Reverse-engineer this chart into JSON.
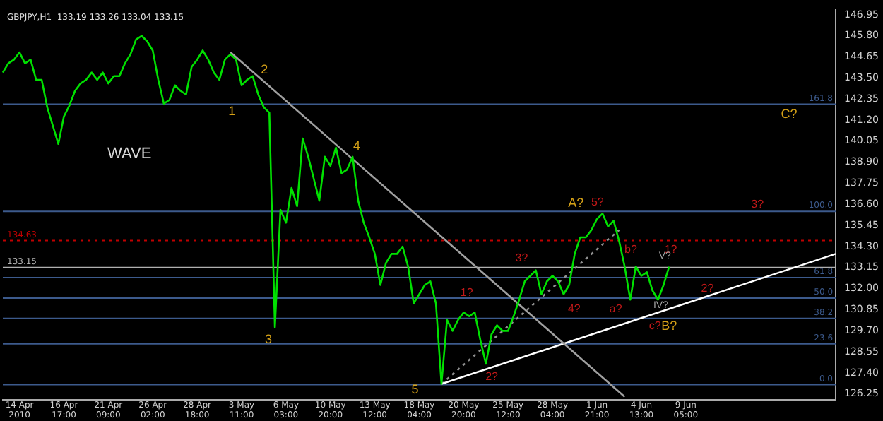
{
  "chart_data": {
    "type": "line",
    "title": "GBPJPY,H1  133.19 133.26 133.04 133.15",
    "categories": [
      null,
      null,
      null,
      "14 Apr 2010",
      null,
      null,
      null,
      null,
      null,
      null,
      null,
      "16 Apr 17:00",
      null,
      null,
      null,
      null,
      null,
      null,
      null,
      "21 Apr 09:00",
      null,
      null,
      null,
      null,
      null,
      null,
      null,
      "26 Apr 02:00",
      null,
      null,
      null,
      null,
      null,
      null,
      null,
      "28 Apr 18:00",
      null,
      null,
      null,
      null,
      null,
      null,
      null,
      "3 May 11:00",
      null,
      null,
      null,
      null,
      null,
      null,
      null,
      "6 May 03:00",
      null,
      null,
      null,
      null,
      null,
      null,
      null,
      "10 May 20:00",
      null,
      null,
      null,
      null,
      null,
      null,
      null,
      "13 May 12:00",
      null,
      null,
      null,
      null,
      null,
      null,
      null,
      "18 May 04:00",
      null,
      null,
      null,
      null,
      null,
      null,
      null,
      "20 May 20:00",
      null,
      null,
      null,
      null,
      null,
      null,
      null,
      "25 May 12:00",
      null,
      null,
      null,
      null,
      null,
      null,
      null,
      "28 May 04:00",
      null,
      null,
      null,
      null,
      null,
      null,
      null,
      "1 Jun 21:00",
      null,
      null,
      null,
      null,
      null,
      null,
      null,
      "4 Jun 13:00",
      null,
      null,
      null,
      null,
      null,
      null,
      null,
      "9 Jun 05:00",
      null,
      null,
      null,
      null,
      null,
      null,
      null,
      null,
      null,
      null,
      null,
      null,
      null,
      null,
      null,
      null,
      null,
      null,
      null,
      null,
      null,
      null,
      null,
      null,
      null,
      null,
      null
    ],
    "ylim": [
      125.95,
      147.2
    ],
    "yticks": [
      126.25,
      {
        "value": 127.4,
        "label": "127.40"
      },
      128.55,
      {
        "value": 129.7,
        "label": "129.70"
      },
      130.85,
      {
        "value": 132,
        "label": "132.00"
      },
      133.15,
      {
        "value": 134.3,
        "label": "134.30"
      },
      135.45,
      {
        "value": 136.6,
        "label": "136.60"
      },
      137.75,
      {
        "value": 138.9,
        "label": "138.90"
      },
      140.05,
      {
        "value": 141.2,
        "label": "141.20"
      },
      142.35,
      {
        "value": 143.5,
        "label": "143.50"
      },
      144.65,
      {
        "value": 145.8,
        "label": "145.80"
      },
      146.95
    ],
    "y2lim": [
      -8.56,
      216.07
    ],
    "marker": "none",
    "series": [
      {
        "color": "#00e000",
        "values": [
          143.8,
          144.3,
          144.5,
          144.9,
          144.3,
          144.5,
          143.4,
          143.4,
          141.9,
          140.9,
          139.9,
          141.4,
          142.0,
          142.8,
          143.2,
          143.4,
          143.8,
          143.4,
          143.8,
          143.2,
          143.6,
          143.6,
          144.3,
          144.8,
          145.6,
          145.8,
          145.5,
          145.0,
          143.4,
          142.1,
          142.3,
          143.1,
          142.8,
          142.6,
          144.1,
          144.5,
          145.0,
          144.5,
          143.8,
          143.4,
          144.5,
          144.8,
          144.5,
          143.1,
          143.4,
          143.6,
          142.6,
          141.9,
          141.6,
          129.9,
          136.3,
          135.6,
          137.5,
          136.5,
          140.2,
          139.2,
          138.0,
          136.8,
          139.2,
          138.7,
          139.7,
          138.3,
          138.5,
          139.2,
          136.8,
          135.6,
          134.8,
          133.9,
          132.2,
          133.4,
          133.9,
          133.9,
          134.3,
          133.2,
          131.2,
          131.7,
          132.2,
          132.4,
          131.2,
          126.8,
          130.3,
          129.7,
          130.3,
          130.7,
          130.5,
          130.7,
          129.2,
          127.9,
          129.5,
          130.0,
          129.7,
          129.7,
          130.5,
          131.4,
          132.4,
          132.7,
          133.0,
          131.7,
          132.4,
          132.7,
          132.4,
          131.7,
          132.2,
          133.9,
          134.8,
          134.8,
          135.2,
          135.8,
          136.1,
          135.4,
          135.7,
          134.6,
          133.2,
          131.4,
          133.2,
          132.7,
          132.9,
          131.9,
          131.4,
          132.2,
          133.2,
          null,
          null,
          null,
          null,
          null,
          null,
          null,
          null,
          null,
          null,
          null,
          null,
          null,
          null,
          null,
          null,
          null,
          null,
          null,
          null,
          null,
          null,
          null,
          null,
          null,
          null,
          null,
          null,
          null,
          null
        ]
      },
      {
        "type": "line",
        "color": "#a0a0a0",
        "values": [
          null,
          null,
          null,
          null,
          null,
          null,
          null,
          null,
          null,
          null,
          null,
          null,
          null,
          null,
          null,
          null,
          null,
          null,
          null,
          null,
          null,
          null,
          null,
          null,
          null,
          null,
          null,
          null,
          null,
          null,
          null,
          null,
          null,
          null,
          null,
          null,
          null,
          null,
          null,
          null,
          null,
          144.9,
          null,
          null,
          null,
          null,
          null,
          null,
          null,
          null,
          null,
          null,
          null,
          null,
          null,
          null,
          null,
          null,
          null,
          null,
          null,
          null,
          null,
          null,
          null,
          null,
          null,
          null,
          null,
          null,
          null,
          null,
          null,
          null,
          null,
          null,
          null,
          null,
          null,
          null,
          null,
          null,
          null,
          null,
          null,
          null,
          null,
          null,
          null,
          null,
          null,
          null,
          null,
          null,
          null,
          null,
          null,
          null,
          null,
          null,
          null,
          null,
          null,
          null,
          null,
          null,
          null,
          null,
          null,
          null,
          null,
          null,
          126.1,
          null,
          null,
          null,
          null,
          null,
          null,
          null,
          null,
          null,
          null,
          null,
          null,
          null,
          null,
          null,
          null,
          null,
          null,
          null,
          null,
          null,
          null,
          null,
          null,
          null,
          null,
          null,
          null,
          null,
          null,
          null,
          null,
          null,
          null,
          null,
          null,
          null,
          null
        ]
      },
      {
        "type": "line",
        "color": "#ffffff",
        "values": [
          null,
          null,
          null,
          null,
          null,
          null,
          null,
          null,
          null,
          null,
          null,
          null,
          null,
          null,
          null,
          null,
          null,
          null,
          null,
          null,
          null,
          null,
          null,
          null,
          null,
          null,
          null,
          null,
          null,
          null,
          null,
          null,
          null,
          null,
          null,
          null,
          null,
          null,
          null,
          null,
          null,
          null,
          null,
          null,
          null,
          null,
          null,
          null,
          null,
          null,
          null,
          null,
          null,
          null,
          null,
          null,
          null,
          null,
          null,
          null,
          null,
          null,
          null,
          null,
          null,
          null,
          null,
          null,
          null,
          null,
          null,
          null,
          null,
          null,
          null,
          null,
          null,
          null,
          null,
          126.8,
          null,
          null,
          null,
          null,
          null,
          null,
          null,
          null,
          null,
          null,
          null,
          null,
          null,
          null,
          null,
          null,
          null,
          null,
          null,
          null,
          null,
          null,
          null,
          null,
          null,
          null,
          null,
          null,
          null,
          null,
          null,
          null,
          null,
          null,
          null,
          null,
          null,
          null,
          null,
          null,
          null,
          null,
          null,
          null,
          null,
          null,
          null,
          null,
          null,
          null,
          null,
          null,
          null,
          null,
          null,
          null,
          null,
          null,
          null,
          null,
          null,
          null,
          null,
          null,
          null,
          null,
          null,
          null,
          null,
          null,
          133.9
        ]
      },
      {
        "type": "line",
        "color": "#909090",
        "line_style": "dotted",
        "values": [
          null,
          null,
          null,
          null,
          null,
          null,
          null,
          null,
          null,
          null,
          null,
          null,
          null,
          null,
          null,
          null,
          null,
          null,
          null,
          null,
          null,
          null,
          null,
          null,
          null,
          null,
          null,
          null,
          null,
          null,
          null,
          null,
          null,
          null,
          null,
          null,
          null,
          null,
          null,
          null,
          null,
          null,
          null,
          null,
          null,
          null,
          null,
          null,
          null,
          null,
          null,
          null,
          null,
          null,
          null,
          null,
          null,
          null,
          null,
          null,
          null,
          null,
          null,
          null,
          null,
          null,
          null,
          null,
          null,
          null,
          null,
          null,
          null,
          null,
          null,
          null,
          null,
          null,
          null,
          126.8,
          null,
          null,
          null,
          null,
          null,
          null,
          null,
          null,
          null,
          null,
          null,
          null,
          null,
          null,
          null,
          null,
          null,
          null,
          null,
          null,
          null,
          null,
          null,
          null,
          null,
          null,
          null,
          null,
          null,
          null,
          null,
          135.2,
          null,
          null,
          null,
          null,
          null,
          null,
          null,
          null,
          null,
          null,
          null,
          null,
          null,
          null,
          null,
          null,
          null,
          null,
          null,
          null,
          null,
          null,
          null,
          null,
          null,
          null,
          null,
          null,
          null,
          null,
          null,
          null,
          null,
          null,
          null,
          null,
          null,
          null,
          null
        ]
      }
    ],
    "ref_lines": [
      {
        "axis": "y",
        "value": 134.63,
        "label": "134.63",
        "color": "#c00000",
        "line_style": "dotted"
      },
      {
        "axis": "y",
        "value": 133.15,
        "label": "133.15",
        "color": "#b0b0b0"
      },
      {
        "axis": "y2",
        "value": 161.8,
        "label": "161.8",
        "color": "#3c5a8c"
      },
      {
        "axis": "y2",
        "value": 100.0,
        "label": "100.0",
        "color": "#3c5a8c"
      },
      {
        "axis": "y2",
        "value": 61.8,
        "label": "61.8",
        "color": "#3c5a8c"
      },
      {
        "axis": "y2",
        "value": 50.0,
        "label": "50.0",
        "color": "#3c5a8c"
      },
      {
        "axis": "y2",
        "value": 38.2,
        "label": "38.2",
        "color": "#3c5a8c"
      },
      {
        "axis": "y2",
        "value": 23.6,
        "label": "23.6",
        "color": "#3c5a8c"
      },
      {
        "axis": "y2",
        "value": 0.0,
        "label": "0.0",
        "color": "#3c5a8c"
      }
    ],
    "annotations": [
      "WAVE",
      "1",
      "2",
      "3",
      "4",
      "5",
      "A?",
      "B?",
      "C?",
      "1?",
      "2?",
      "3?",
      "4?",
      "5?",
      "a?",
      "b?",
      "c?",
      "1?",
      "2?",
      "3?",
      "V?",
      "IV?"
    ]
  }
}
